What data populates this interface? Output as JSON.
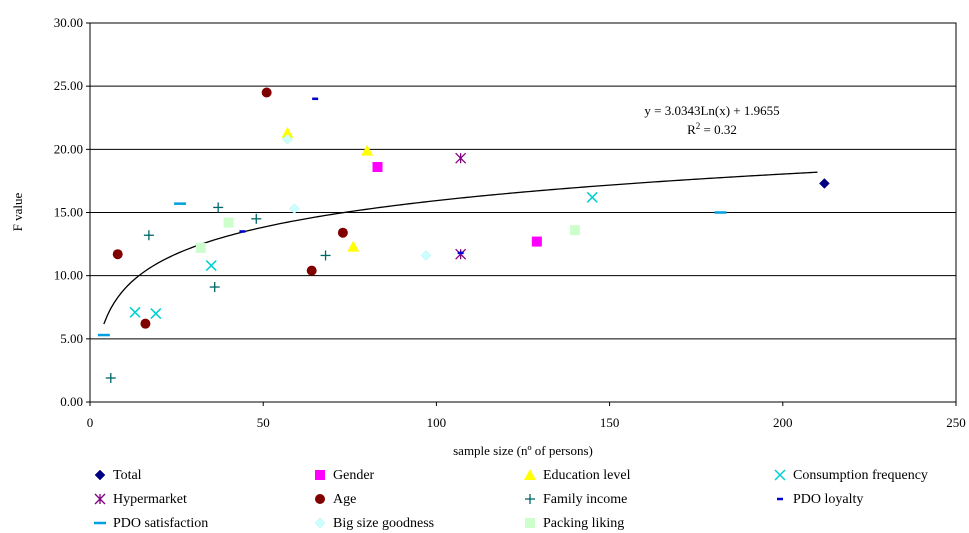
{
  "chart_data": {
    "type": "scatter",
    "xlabel": "sample size (nº of persons)",
    "ylabel": "F value",
    "xlim": [
      0,
      250
    ],
    "ylim": [
      0,
      30
    ],
    "xticks": [
      "0",
      "50",
      "100",
      "150",
      "200",
      "250"
    ],
    "yticks": [
      "0.00",
      "5.00",
      "10.00",
      "15.00",
      "20.00",
      "25.00",
      "30.00"
    ],
    "grid": "horizontal",
    "legend_position": "bottom",
    "series": [
      {
        "name": "Total",
        "marker": "diamond",
        "color": "#000080",
        "points": [
          [
            212,
            17.3
          ]
        ]
      },
      {
        "name": "Gender",
        "marker": "square",
        "color": "#ff00ff",
        "points": [
          [
            83,
            18.6
          ],
          [
            129,
            12.7
          ]
        ]
      },
      {
        "name": "Education level",
        "marker": "triangle",
        "color": "#ffff00",
        "points": [
          [
            57,
            21.3
          ],
          [
            80,
            19.9
          ],
          [
            76,
            12.3
          ]
        ]
      },
      {
        "name": "Consumption frequency",
        "marker": "x",
        "color": "#00d0d0",
        "points": [
          [
            13,
            7.1
          ],
          [
            19,
            7.0
          ],
          [
            35,
            10.8
          ],
          [
            145,
            16.2
          ]
        ]
      },
      {
        "name": "Hypermarket",
        "marker": "asterisk",
        "color": "#800080",
        "points": [
          [
            107,
            19.3
          ],
          [
            107,
            11.7
          ]
        ]
      },
      {
        "name": "Age",
        "marker": "circle",
        "color": "#800000",
        "points": [
          [
            8,
            11.7
          ],
          [
            16,
            6.2
          ],
          [
            51,
            24.5
          ],
          [
            64,
            10.4
          ],
          [
            73,
            13.4
          ]
        ]
      },
      {
        "name": "Family income",
        "marker": "plus",
        "color": "#006666",
        "points": [
          [
            6,
            1.9
          ],
          [
            17,
            13.2
          ],
          [
            37,
            15.4
          ],
          [
            48,
            14.5
          ],
          [
            36,
            9.1
          ],
          [
            68,
            11.6
          ]
        ]
      },
      {
        "name": "PDO loyalty",
        "marker": "dash-short",
        "color": "#0000cc",
        "points": [
          [
            65,
            24.0
          ],
          [
            44,
            13.5
          ],
          [
            107,
            11.8
          ]
        ]
      },
      {
        "name": "PDO satisfaction",
        "marker": "dash",
        "color": "#00a0e0",
        "points": [
          [
            26,
            15.7
          ],
          [
            4,
            5.3
          ],
          [
            182,
            15.0
          ]
        ]
      },
      {
        "name": "Big size goodness",
        "marker": "diamond",
        "color": "#ccffff",
        "points": [
          [
            59,
            15.3
          ],
          [
            57,
            20.8
          ],
          [
            97,
            11.6
          ]
        ]
      },
      {
        "name": "Packing liking",
        "marker": "square",
        "color": "#ccffcc",
        "points": [
          [
            40,
            14.2
          ],
          [
            32,
            12.2
          ],
          [
            140,
            13.6
          ]
        ]
      }
    ],
    "trendline": {
      "type": "log",
      "a": 3.0343,
      "b": 1.9655,
      "x_start": 4,
      "x_end": 210,
      "equation_text": "y = 3.0343Ln(x) + 1.9655",
      "r2_prefix": "R",
      "r2_exponent": "2",
      "r2_suffix": " = 0.32"
    }
  }
}
